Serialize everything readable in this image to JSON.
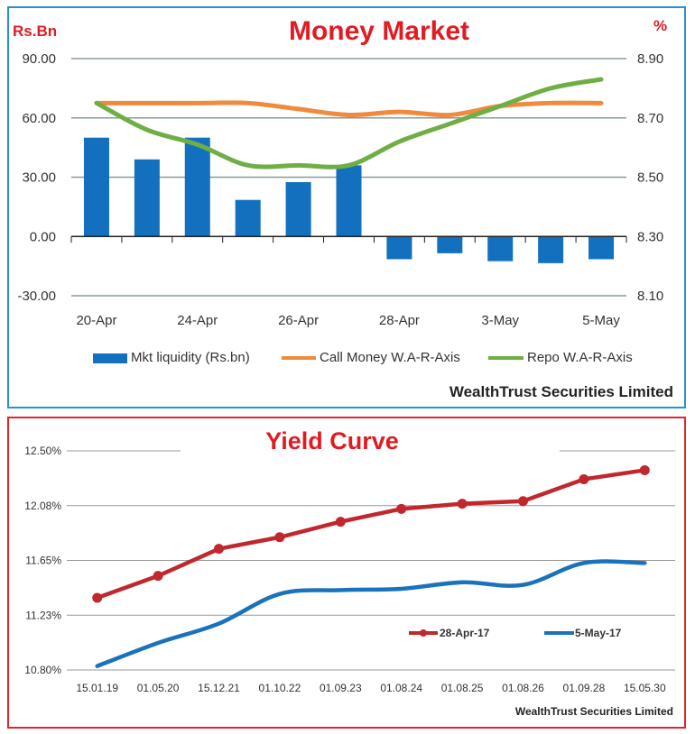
{
  "chart_data": [
    {
      "type": "bar+line",
      "title": "Money Market",
      "ylabel_left": "Rs.Bn",
      "ylabel_right": "%",
      "categories": [
        "20-Apr",
        "",
        "24-Apr",
        "",
        "26-Apr",
        "",
        "28-Apr",
        "",
        "3-May",
        "",
        "5-May"
      ],
      "ylim_left": [
        -30,
        90
      ],
      "yticks_left": [
        "90.00",
        "60.00",
        "30.00",
        "0.00",
        "-30.00"
      ],
      "ylim_right": [
        8.1,
        8.9
      ],
      "yticks_right": [
        "8.90",
        "8.70",
        "8.50",
        "8.30",
        "8.10"
      ],
      "grid": true,
      "legend_position": "bottom",
      "series": [
        {
          "name": "Mkt liquidity (Rs.bn)",
          "type": "bar",
          "axis": "left",
          "color": "#1270be",
          "values": [
            50,
            39,
            50,
            18.5,
            27.5,
            36,
            -11.5,
            -8.5,
            -12.5,
            -13.5,
            -11.5
          ]
        },
        {
          "name": "Call Money W.A-R-Axis",
          "type": "line",
          "axis": "right",
          "color": "#f08a3c",
          "values": [
            8.75,
            8.75,
            8.75,
            8.75,
            8.73,
            8.71,
            8.72,
            8.71,
            8.74,
            8.75,
            8.75
          ]
        },
        {
          "name": "Repo W.A-R-Axis",
          "type": "line",
          "axis": "right",
          "color": "#6fae45",
          "values": [
            8.75,
            8.66,
            8.61,
            8.54,
            8.54,
            8.54,
            8.62,
            8.68,
            8.74,
            8.8,
            8.83
          ]
        }
      ],
      "source": "WealthTrust Securities Limited"
    },
    {
      "type": "line",
      "title": "Yield Curve",
      "categories": [
        "15.01.19",
        "01.05.20",
        "15.12.21",
        "01.10.22",
        "01.09.23",
        "01.08.24",
        "01.08.25",
        "01.08.26",
        "01.09.28",
        "15.05.30"
      ],
      "ylim": [
        10.8,
        12.5
      ],
      "yticks": [
        "12.50%",
        "12.08%",
        "11.65%",
        "11.23%",
        "10.80%"
      ],
      "grid": true,
      "legend_position": "inside-bottom-right",
      "series": [
        {
          "name": "28-Apr-17",
          "color": "#c0282d",
          "markers": true,
          "values": [
            11.36,
            11.53,
            11.74,
            11.83,
            11.95,
            12.05,
            12.09,
            12.11,
            12.28,
            12.35
          ]
        },
        {
          "name": "5-May-17",
          "color": "#1a72bb",
          "markers": false,
          "values": [
            10.83,
            11.01,
            11.16,
            11.39,
            11.42,
            11.43,
            11.48,
            11.46,
            11.63,
            11.63
          ]
        }
      ],
      "source": "WealthTrust Securities Limited"
    }
  ]
}
